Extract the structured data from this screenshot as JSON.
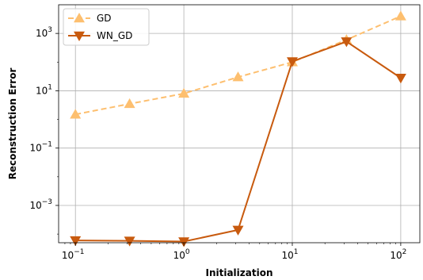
{
  "chart_data": {
    "type": "line",
    "xlabel": "Initialization",
    "ylabel": "Reconstruction Error",
    "x_scale": "log",
    "y_scale": "log",
    "xlim": [
      0.07,
      150
    ],
    "ylim": [
      5e-05,
      10000
    ],
    "grid": true,
    "legend_position": "top-left",
    "x_ticks": [
      {
        "value": 0.1,
        "base": "10",
        "exp": "−1"
      },
      {
        "value": 1,
        "base": "10",
        "exp": "0"
      },
      {
        "value": 10,
        "base": "10",
        "exp": "1"
      },
      {
        "value": 100,
        "base": "10",
        "exp": "2"
      }
    ],
    "y_ticks": [
      {
        "value": 0.001,
        "base": "10",
        "exp": "−3"
      },
      {
        "value": 0.1,
        "base": "10",
        "exp": "−1"
      },
      {
        "value": 10,
        "base": "10",
        "exp": "1"
      },
      {
        "value": 1000,
        "base": "10",
        "exp": "3"
      }
    ],
    "x": [
      0.1,
      0.316,
      1,
      3.16,
      10,
      31.6,
      100
    ],
    "series": [
      {
        "name": "GD",
        "color": "#fdbf6f",
        "line_style": "dashed",
        "marker": "triangle-up",
        "values": [
          1.5,
          3.5,
          8,
          30,
          100,
          600,
          4000
        ]
      },
      {
        "name": "WN_GD",
        "color": "#c85a0e",
        "line_style": "solid",
        "marker": "triangle-down",
        "values": [
          6e-05,
          5.8e-05,
          5.5e-05,
          0.00014,
          105,
          520,
          28
        ]
      }
    ]
  }
}
